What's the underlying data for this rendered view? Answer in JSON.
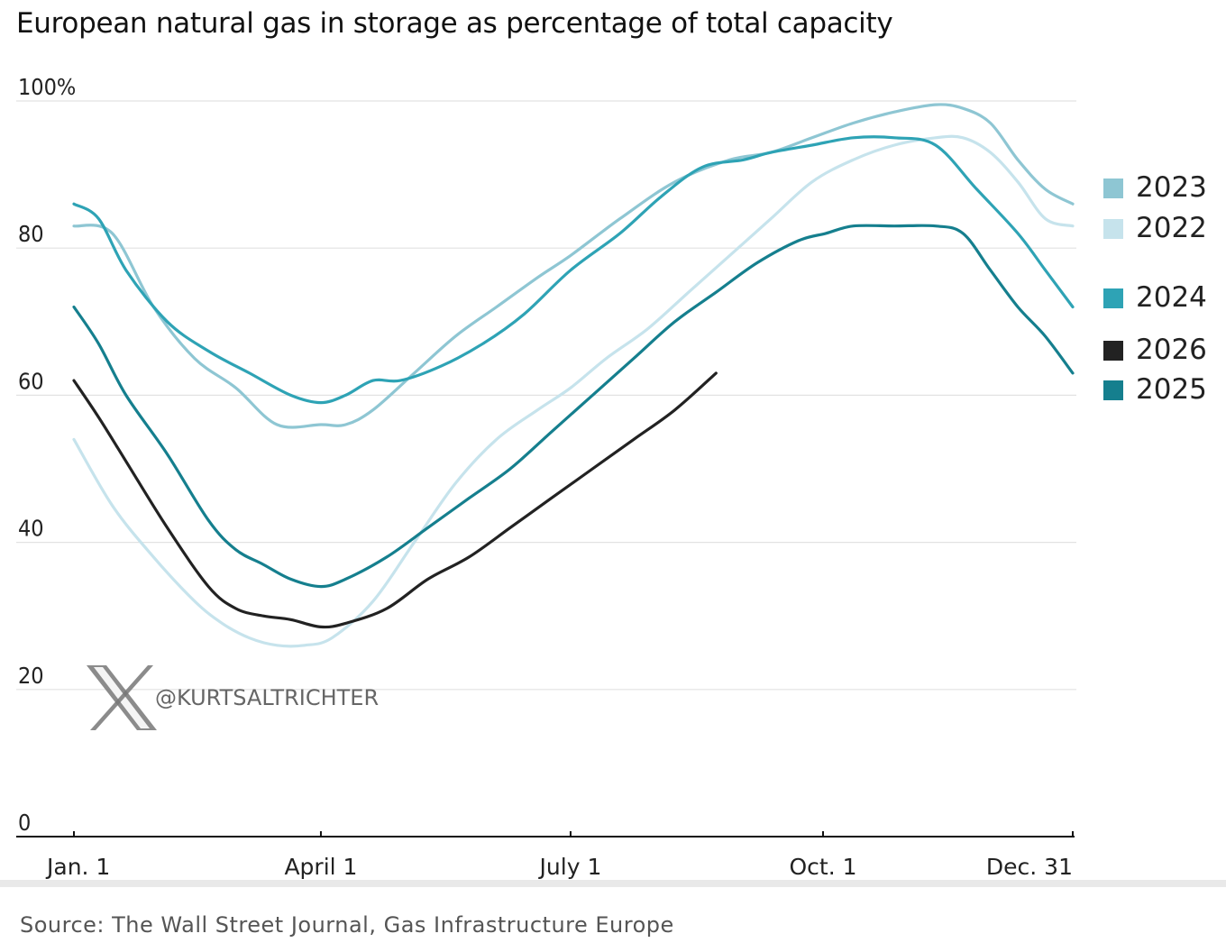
{
  "chart_data": {
    "type": "line",
    "title": "European natural gas in storage as percentage of total capacity",
    "ylabel": "",
    "xlabel": "",
    "ylim": [
      0,
      100
    ],
    "xlim": [
      1,
      365
    ],
    "y_ticks": [
      {
        "value": 100,
        "label": "100%"
      },
      {
        "value": 80,
        "label": "80"
      },
      {
        "value": 60,
        "label": "60"
      },
      {
        "value": 40,
        "label": "40"
      },
      {
        "value": 20,
        "label": "20"
      },
      {
        "value": 0,
        "label": "0"
      }
    ],
    "x_ticks": [
      {
        "day": 1,
        "label": "Jan. 1"
      },
      {
        "day": 91,
        "label": "April 1"
      },
      {
        "day": 182,
        "label": "July 1"
      },
      {
        "day": 274,
        "label": "Oct. 1"
      },
      {
        "day": 365,
        "label": "Dec. 31"
      }
    ],
    "grid": true,
    "legend_position": "right",
    "series": [
      {
        "name": "2023",
        "color": "#8ec6d3",
        "x": [
          1,
          15,
          30,
          45,
          60,
          75,
          91,
          100,
          110,
          125,
          140,
          155,
          170,
          182,
          200,
          220,
          240,
          255,
          270,
          285,
          300,
          315,
          325,
          335,
          345,
          355,
          365
        ],
        "y": [
          83,
          82,
          72,
          65,
          61,
          56,
          56,
          56,
          58,
          63,
          68,
          72,
          76,
          79,
          84,
          89,
          92,
          93,
          95,
          97,
          98.5,
          99.5,
          99,
          97,
          92,
          88,
          86
        ]
      },
      {
        "name": "2022",
        "color": "#c6e3ec",
        "x": [
          1,
          15,
          30,
          45,
          55,
          65,
          75,
          85,
          95,
          110,
          125,
          140,
          155,
          170,
          182,
          195,
          210,
          225,
          240,
          255,
          270,
          285,
          300,
          315,
          325,
          335,
          345,
          355,
          365
        ],
        "y": [
          54,
          45,
          38,
          32,
          29,
          27,
          26,
          26,
          27,
          32,
          40,
          48,
          54,
          58,
          61,
          65,
          69,
          74,
          79,
          84,
          89,
          92,
          94,
          95,
          95,
          93,
          89,
          84,
          83
        ]
      },
      {
        "name": "2024",
        "color": "#2ea3b5",
        "x": [
          1,
          10,
          20,
          35,
          50,
          65,
          80,
          91,
          100,
          110,
          120,
          135,
          150,
          165,
          182,
          200,
          215,
          230,
          245,
          255,
          270,
          285,
          300,
          315,
          330,
          345,
          355,
          365
        ],
        "y": [
          86,
          84,
          77,
          70,
          66,
          63,
          60,
          59,
          60,
          62,
          62,
          64,
          67,
          71,
          77,
          82,
          87,
          91,
          92,
          93,
          94,
          95,
          95,
          94,
          88,
          82,
          77,
          72
        ]
      },
      {
        "name": "2026",
        "color": "#222222",
        "x": [
          1,
          10,
          20,
          35,
          50,
          60,
          70,
          80,
          91,
          100,
          115,
          130,
          145,
          160,
          175,
          190,
          205,
          220,
          235
        ],
        "y": [
          62,
          57,
          51,
          42,
          34,
          31,
          30,
          29.5,
          28.5,
          29,
          31,
          35,
          38,
          42,
          46,
          50,
          54,
          58,
          63
        ]
      },
      {
        "name": "2025",
        "color": "#157f8e",
        "x": [
          1,
          10,
          20,
          35,
          50,
          60,
          70,
          80,
          91,
          100,
          115,
          130,
          145,
          160,
          175,
          190,
          205,
          220,
          235,
          250,
          265,
          275,
          285,
          300,
          315,
          325,
          335,
          345,
          355,
          365
        ],
        "y": [
          72,
          67,
          60,
          52,
          43,
          39,
          37,
          35,
          34,
          35,
          38,
          42,
          46,
          50,
          55,
          60,
          65,
          70,
          74,
          78,
          81,
          82,
          83,
          83,
          83,
          82,
          77,
          72,
          68,
          63
        ]
      }
    ],
    "legend": [
      {
        "name": "2023",
        "color": "#8ec6d3"
      },
      {
        "name": "2022",
        "color": "#c6e3ec"
      },
      {
        "name": "2024",
        "color": "#2ea3b5"
      },
      {
        "name": "2026",
        "color": "#222222"
      },
      {
        "name": "2025",
        "color": "#157f8e"
      }
    ]
  },
  "watermark": {
    "handle": "@KURTSALTRICHTER",
    "icon": "x-logo-icon"
  },
  "source": "Source: The Wall Street Journal, Gas Infrastructure Europe"
}
